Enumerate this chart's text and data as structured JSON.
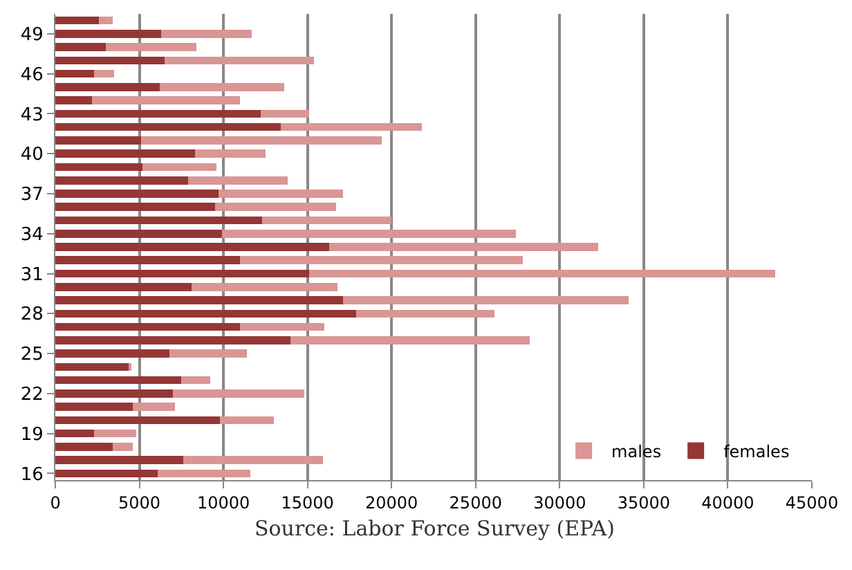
{
  "chart_data": {
    "type": "bar",
    "orientation": "horizontal",
    "stacked": true,
    "categories": [
      null,
      "49",
      null,
      null,
      "46",
      null,
      null,
      "43",
      null,
      null,
      "40",
      null,
      null,
      "37",
      null,
      null,
      "34",
      null,
      null,
      "31",
      null,
      null,
      "28",
      null,
      null,
      "25",
      null,
      null,
      "22",
      null,
      null,
      "19",
      null,
      null,
      "16"
    ],
    "series": [
      {
        "name": "females",
        "color": "#953735",
        "values": [
          2600,
          6300,
          3000,
          6500,
          2300,
          6200,
          2200,
          12200,
          13400,
          5100,
          8300,
          5200,
          7900,
          9700,
          9500,
          12300,
          9900,
          16300,
          11000,
          15100,
          8100,
          17100,
          17900,
          11000,
          14000,
          6800,
          4400,
          7500,
          7000,
          4600,
          9800,
          2300,
          3400,
          7600,
          6100
        ]
      },
      {
        "name": "males",
        "color": "#d99694",
        "values": [
          800,
          5400,
          5400,
          8900,
          1200,
          7400,
          8800,
          2900,
          8400,
          14300,
          4200,
          4400,
          5900,
          7400,
          7200,
          7700,
          17500,
          16000,
          16800,
          27700,
          8700,
          17000,
          8200,
          5000,
          14200,
          4600,
          100,
          1700,
          7800,
          2500,
          3200,
          2500,
          1200,
          8300,
          5500
        ]
      }
    ],
    "xlim": [
      0,
      45000
    ],
    "xticks": [
      0,
      5000,
      10000,
      15000,
      20000,
      25000,
      30000,
      35000,
      40000,
      45000
    ],
    "grid": "x",
    "legend": "bottom right",
    "annotations": [
      "Source: Labor Force Survey (EPA)"
    ]
  }
}
